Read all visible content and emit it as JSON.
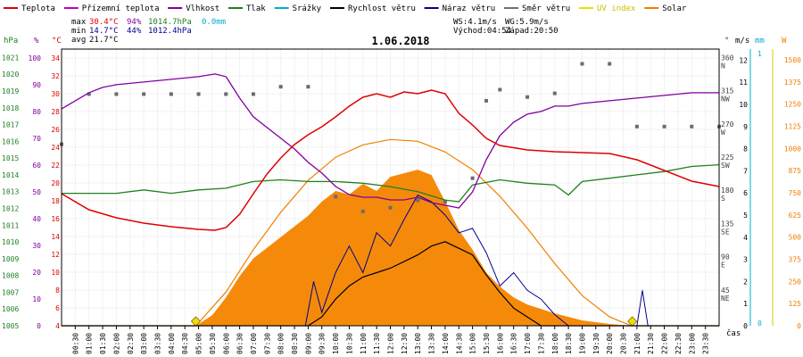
{
  "chart_data": {
    "type": "line",
    "title": "1.06.2018",
    "legend": [
      {
        "label": "Teplota",
        "color": "#e00000"
      },
      {
        "label": "Přízemní teplota",
        "color": "#c000c0"
      },
      {
        "label": "Vlhkost",
        "color": "#8000a0"
      },
      {
        "label": "Tlak",
        "color": "#208020"
      },
      {
        "label": "Srážky",
        "color": "#00b0d0"
      },
      {
        "label": "Rychlost větru",
        "color": "#000000"
      },
      {
        "label": "Náraz větru",
        "color": "#000090"
      },
      {
        "label": "Směr větru",
        "color": "#707070"
      },
      {
        "label": "UV index",
        "color": "#e8e000"
      },
      {
        "label": "Solar",
        "color": "#f08000"
      }
    ],
    "stats": {
      "max_label": "max",
      "max_temp": "30.4°C",
      "max_hum": "94%",
      "max_press": "1014.7hPa",
      "max_rain": "0.0mm",
      "min_label": "min",
      "min_temp": "14.7°C",
      "min_hum": "44%",
      "min_press": "1012.4hPa",
      "avg_label": "avg",
      "avg_temp": "21.7°C",
      "ws": "WS:4.1m/s",
      "wg": "WG:5.9m/s",
      "sunrise": "Východ:04:54",
      "sunset": "Západ:20:50"
    },
    "axes": {
      "hpa_unit": "hPa",
      "pct_unit": "%",
      "c_unit": "°C",
      "dir_unit": "°",
      "ms_unit": "m/s",
      "mm_unit": "mm",
      "w_unit": "W",
      "time_unit": "čas",
      "hpa_ticks": [
        "1021",
        "1020",
        "1019",
        "1018",
        "1017",
        "1016",
        "1015",
        "1014",
        "1013",
        "1012",
        "1011",
        "1010",
        "1009",
        "1008",
        "1007",
        "1006",
        "1005"
      ],
      "pct_ticks": [
        "100",
        "90",
        "80",
        "70",
        "60",
        "50",
        "40",
        "30",
        "20",
        "10",
        "0"
      ],
      "c_ticks": [
        "34",
        "32",
        "30",
        "28",
        "26",
        "24",
        "22",
        "20",
        "18",
        "16",
        "14",
        "12",
        "10",
        "8",
        "6",
        "4"
      ],
      "dir_ticks": [
        {
          "deg": "360",
          "dir": "N"
        },
        {
          "deg": "315",
          "dir": "NW"
        },
        {
          "deg": "270",
          "dir": "W"
        },
        {
          "deg": "225",
          "dir": "SW"
        },
        {
          "deg": "180",
          "dir": "S"
        },
        {
          "deg": "135",
          "dir": "SE"
        },
        {
          "deg": "90",
          "dir": "E"
        },
        {
          "deg": "45",
          "dir": "NE"
        }
      ],
      "ms_ticks": [
        "12",
        "11",
        "10",
        "9",
        "8",
        "7",
        "6",
        "5",
        "4",
        "3",
        "2",
        "1",
        "0"
      ],
      "mm_ticks": [
        "1",
        "0"
      ],
      "w_ticks": [
        "1500",
        "1375",
        "1250",
        "1125",
        "1000",
        "875",
        "750",
        "625",
        "500",
        "375",
        "250",
        "125",
        "0"
      ],
      "time_ticks": [
        "00:30",
        "01:00",
        "01:30",
        "02:00",
        "02:30",
        "03:00",
        "03:30",
        "04:00",
        "04:30",
        "05:00",
        "05:30",
        "06:00",
        "06:30",
        "07:00",
        "07:30",
        "08:00",
        "08:30",
        "09:00",
        "09:30",
        "10:00",
        "10:30",
        "11:00",
        "11:30",
        "12:00",
        "12:30",
        "13:00",
        "13:30",
        "14:00",
        "14:30",
        "15:00",
        "15:30",
        "16:00",
        "16:30",
        "17:00",
        "17:30",
        "18:00",
        "18:30",
        "19:00",
        "19:30",
        "20:00",
        "20:30",
        "21:00",
        "21:30",
        "22:00",
        "22:30",
        "23:00",
        "23:30"
      ]
    },
    "x_range_hours": [
      0,
      24
    ],
    "series": {
      "temperature_c": [
        [
          0,
          18.8
        ],
        [
          1,
          17.0
        ],
        [
          2,
          16.1
        ],
        [
          3,
          15.5
        ],
        [
          4,
          15.1
        ],
        [
          5,
          14.8
        ],
        [
          5.6,
          14.7
        ],
        [
          6,
          15.0
        ],
        [
          6.5,
          16.5
        ],
        [
          7,
          18.8
        ],
        [
          7.5,
          21.0
        ],
        [
          8,
          22.8
        ],
        [
          8.5,
          24.3
        ],
        [
          9,
          25.4
        ],
        [
          9.5,
          26.3
        ],
        [
          10,
          27.4
        ],
        [
          10.5,
          28.6
        ],
        [
          11,
          29.6
        ],
        [
          11.5,
          30.0
        ],
        [
          12,
          29.6
        ],
        [
          12.5,
          30.2
        ],
        [
          13,
          30.0
        ],
        [
          13.5,
          30.4
        ],
        [
          14,
          30.0
        ],
        [
          14.5,
          27.8
        ],
        [
          15,
          26.5
        ],
        [
          15.5,
          25.0
        ],
        [
          16,
          24.2
        ],
        [
          17,
          23.7
        ],
        [
          18,
          23.5
        ],
        [
          19,
          23.4
        ],
        [
          20,
          23.3
        ],
        [
          21,
          22.6
        ],
        [
          22,
          21.4
        ],
        [
          23,
          20.2
        ],
        [
          24,
          19.6
        ]
      ],
      "humidity_pct": [
        [
          0,
          81
        ],
        [
          0.5,
          84
        ],
        [
          1,
          87
        ],
        [
          1.5,
          89
        ],
        [
          2,
          90
        ],
        [
          3,
          91
        ],
        [
          4,
          92
        ],
        [
          5,
          93
        ],
        [
          5.6,
          94
        ],
        [
          6,
          93
        ],
        [
          6.5,
          85
        ],
        [
          7,
          78
        ],
        [
          7.5,
          74
        ],
        [
          8,
          70
        ],
        [
          8.5,
          66
        ],
        [
          9,
          61
        ],
        [
          9.5,
          57
        ],
        [
          10,
          52
        ],
        [
          10.5,
          49
        ],
        [
          11,
          48
        ],
        [
          11.5,
          48
        ],
        [
          12,
          47
        ],
        [
          12.5,
          47
        ],
        [
          13,
          48
        ],
        [
          13.5,
          46
        ],
        [
          14,
          45
        ],
        [
          14.5,
          44
        ],
        [
          15,
          50
        ],
        [
          15.5,
          62
        ],
        [
          16,
          71
        ],
        [
          16.5,
          76
        ],
        [
          17,
          79
        ],
        [
          17.5,
          80
        ],
        [
          18,
          82
        ],
        [
          18.5,
          82
        ],
        [
          19,
          83
        ],
        [
          20,
          84
        ],
        [
          21,
          85
        ],
        [
          22,
          86
        ],
        [
          23,
          87
        ],
        [
          24,
          87
        ]
      ],
      "pressure_hpa": [
        [
          0,
          1012.9
        ],
        [
          2,
          1012.9
        ],
        [
          3,
          1013.1
        ],
        [
          4,
          1012.9
        ],
        [
          5,
          1013.1
        ],
        [
          6,
          1013.2
        ],
        [
          7,
          1013.6
        ],
        [
          8,
          1013.7
        ],
        [
          9,
          1013.6
        ],
        [
          10,
          1013.6
        ],
        [
          11,
          1013.5
        ],
        [
          12,
          1013.3
        ],
        [
          13,
          1013.0
        ],
        [
          14,
          1012.5
        ],
        [
          14.5,
          1012.4
        ],
        [
          15,
          1013.4
        ],
        [
          16,
          1013.7
        ],
        [
          17,
          1013.5
        ],
        [
          18,
          1013.4
        ],
        [
          18.5,
          1012.8
        ],
        [
          19,
          1013.6
        ],
        [
          20,
          1013.8
        ],
        [
          21,
          1014.0
        ],
        [
          22,
          1014.2
        ],
        [
          23,
          1014.5
        ],
        [
          24,
          1014.6
        ]
      ],
      "wind_dir_deg": [
        [
          0,
          246
        ],
        [
          1,
          314
        ],
        [
          2,
          314
        ],
        [
          3,
          314
        ],
        [
          4,
          314
        ],
        [
          5,
          314
        ],
        [
          6,
          314
        ],
        [
          7,
          314
        ],
        [
          8,
          324
        ],
        [
          9,
          324
        ],
        [
          10,
          175
        ],
        [
          11,
          155
        ],
        [
          12,
          160
        ],
        [
          13,
          170
        ],
        [
          14,
          168
        ],
        [
          15,
          200
        ],
        [
          15.5,
          305
        ],
        [
          16,
          320
        ],
        [
          17,
          310
        ],
        [
          18,
          315
        ],
        [
          19,
          355
        ],
        [
          20,
          355
        ],
        [
          21,
          270
        ],
        [
          22,
          270
        ],
        [
          23,
          270
        ],
        [
          24,
          270
        ]
      ],
      "wind_speed_ms": [
        [
          0,
          0
        ],
        [
          9,
          0
        ],
        [
          9.5,
          0.4
        ],
        [
          10,
          1.2
        ],
        [
          10.5,
          1.8
        ],
        [
          11,
          2.2
        ],
        [
          11.5,
          2.4
        ],
        [
          12,
          2.6
        ],
        [
          12.5,
          2.9
        ],
        [
          13,
          3.2
        ],
        [
          13.5,
          3.6
        ],
        [
          14,
          3.8
        ],
        [
          14.5,
          3.5
        ],
        [
          15,
          3.2
        ],
        [
          15.5,
          2.3
        ],
        [
          16,
          1.5
        ],
        [
          16.5,
          0.8
        ],
        [
          17,
          0.4
        ],
        [
          17.5,
          0
        ],
        [
          24,
          0
        ]
      ],
      "wind_gust_ms": [
        [
          0,
          0
        ],
        [
          8.9,
          0
        ],
        [
          9.2,
          2.0
        ],
        [
          9.5,
          0.6
        ],
        [
          10,
          2.4
        ],
        [
          10.5,
          3.6
        ],
        [
          11,
          2.4
        ],
        [
          11.5,
          4.2
        ],
        [
          12,
          3.6
        ],
        [
          12.5,
          4.8
        ],
        [
          13,
          5.9
        ],
        [
          13.5,
          5.6
        ],
        [
          14,
          5.0
        ],
        [
          14.5,
          4.2
        ],
        [
          15,
          4.4
        ],
        [
          15.5,
          3.3
        ],
        [
          16,
          1.8
        ],
        [
          16.5,
          2.4
        ],
        [
          17,
          1.6
        ],
        [
          17.5,
          1.2
        ],
        [
          18,
          0.5
        ],
        [
          18.5,
          0
        ],
        [
          21,
          0
        ],
        [
          21.2,
          1.6
        ],
        [
          21.4,
          0
        ],
        [
          24,
          0
        ]
      ],
      "solar_wm2": [
        [
          0,
          0
        ],
        [
          4.9,
          0
        ],
        [
          5.5,
          60
        ],
        [
          6,
          160
        ],
        [
          6.5,
          280
        ],
        [
          7,
          380
        ],
        [
          7.5,
          440
        ],
        [
          8,
          500
        ],
        [
          8.5,
          560
        ],
        [
          9,
          620
        ],
        [
          9.5,
          700
        ],
        [
          10,
          760
        ],
        [
          10.5,
          740
        ],
        [
          11,
          800
        ],
        [
          11.5,
          760
        ],
        [
          12,
          840
        ],
        [
          12.5,
          860
        ],
        [
          13,
          880
        ],
        [
          13.5,
          850
        ],
        [
          14,
          700
        ],
        [
          14.5,
          540
        ],
        [
          15,
          430
        ],
        [
          15.5,
          300
        ],
        [
          16,
          220
        ],
        [
          16.5,
          160
        ],
        [
          17,
          120
        ],
        [
          18,
          70
        ],
        [
          19,
          30
        ],
        [
          20,
          10
        ],
        [
          20.8,
          0
        ],
        [
          24,
          0
        ]
      ],
      "solar_clear_wm2": [
        [
          0,
          0
        ],
        [
          4.9,
          0
        ],
        [
          6,
          190
        ],
        [
          7,
          430
        ],
        [
          8,
          640
        ],
        [
          9,
          820
        ],
        [
          10,
          950
        ],
        [
          11,
          1020
        ],
        [
          12,
          1050
        ],
        [
          13,
          1040
        ],
        [
          14,
          980
        ],
        [
          15,
          880
        ],
        [
          16,
          730
        ],
        [
          17,
          550
        ],
        [
          18,
          350
        ],
        [
          19,
          170
        ],
        [
          20,
          50
        ],
        [
          20.8,
          0
        ],
        [
          24,
          0
        ]
      ]
    },
    "sunrise_marker_h": 4.9,
    "sunset_marker_h": 20.83
  }
}
